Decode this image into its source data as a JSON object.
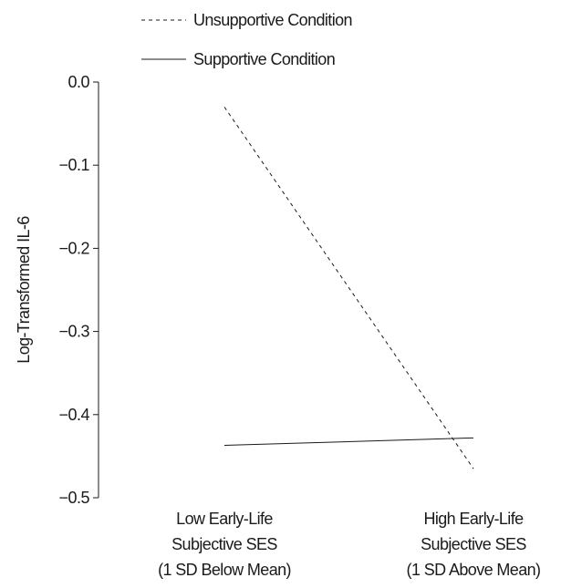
{
  "chart_data": {
    "type": "line",
    "title": "",
    "ylabel": "Log-Transformed IL-6",
    "xlabel": "",
    "ylim": [
      -0.5,
      0.0
    ],
    "yticks": [
      0.0,
      -0.1,
      -0.2,
      -0.3,
      -0.4,
      -0.5
    ],
    "ytick_labels": [
      "0.0",
      "−0.1",
      "−0.2",
      "−0.3",
      "−0.4",
      "−0.5"
    ],
    "categories": [
      [
        "Low Early-Life",
        "Subjective SES",
        "(1 SD Below Mean)"
      ],
      [
        "High Early-Life",
        "Subjective SES",
        "(1 SD Above Mean)"
      ]
    ],
    "legend_position": "top-left",
    "grid": false,
    "series": [
      {
        "name": "Unsupportive Condition",
        "line_style": "dashed",
        "values": [
          -0.03,
          -0.465
        ]
      },
      {
        "name": "Supportive Condition",
        "line_style": "solid",
        "values": [
          -0.437,
          -0.428
        ]
      }
    ]
  }
}
